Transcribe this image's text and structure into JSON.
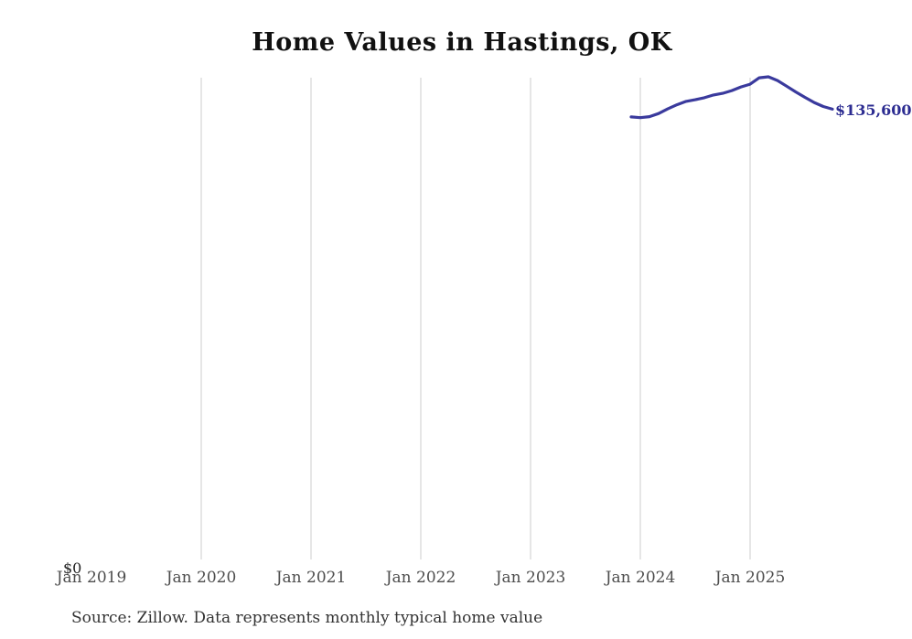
{
  "title": "Home Values in Hastings, OK",
  "source_note": "Source: Zillow. Data represents monthly typical home value",
  "y_axis": {
    "zero_label": "$0"
  },
  "end_label": "$135,600",
  "colors": {
    "line": "#3a3a9d",
    "gridline": "#cccccc",
    "end_label_text": "#2c2c91",
    "tick_text": "#4d4d4d",
    "title_text": "#111111",
    "source_text": "#333333"
  },
  "chart_data": {
    "type": "line",
    "title": "Home Values in Hastings, OK",
    "xlabel": "",
    "ylabel": "",
    "ylim": [
      0,
      145200
    ],
    "grid": "vertical-only",
    "legend": "none",
    "x_ticks": [
      {
        "label": "Jan 2019",
        "month": "2019-01"
      },
      {
        "label": "Jan 2020",
        "month": "2020-01"
      },
      {
        "label": "Jan 2021",
        "month": "2021-01"
      },
      {
        "label": "Jan 2022",
        "month": "2022-01"
      },
      {
        "label": "Jan 2023",
        "month": "2023-01"
      },
      {
        "label": "Jan 2024",
        "month": "2024-01"
      },
      {
        "label": "Jan 2025",
        "month": "2025-01"
      }
    ],
    "gridline_months": [
      "2020-01",
      "2021-01",
      "2022-01",
      "2023-01",
      "2024-01",
      "2025-01"
    ],
    "series": [
      {
        "name": "Monthly typical home value",
        "x": [
          "2023-12",
          "2024-01",
          "2024-02",
          "2024-03",
          "2024-04",
          "2024-05",
          "2024-06",
          "2024-07",
          "2024-08",
          "2024-09",
          "2024-10",
          "2024-11",
          "2024-12",
          "2025-01",
          "2025-02",
          "2025-03",
          "2025-04",
          "2025-05",
          "2025-06",
          "2025-07",
          "2025-08",
          "2025-09",
          "2025-10"
        ],
        "values": [
          133300,
          133100,
          133400,
          134300,
          135700,
          136900,
          137900,
          138400,
          139000,
          139800,
          140300,
          141100,
          142200,
          143000,
          144900,
          145200,
          144100,
          142400,
          140700,
          139100,
          137600,
          136400,
          135600
        ]
      }
    ],
    "end_value_label": "$135,600"
  }
}
